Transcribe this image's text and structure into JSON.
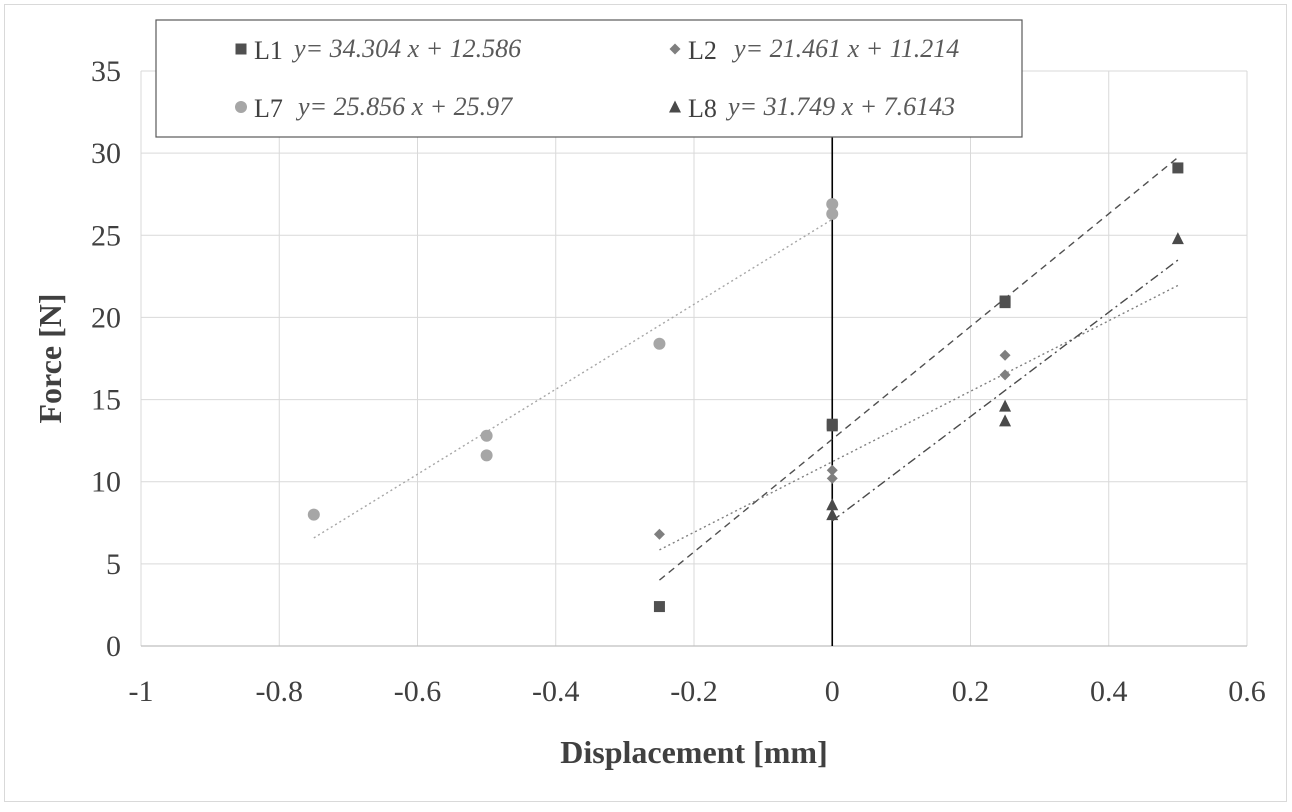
{
  "chart_data": {
    "type": "scatter",
    "xlabel": "Displacement [mm]",
    "ylabel": "Force [N]",
    "xlim": [
      -1,
      0.6
    ],
    "ylim": [
      0,
      35
    ],
    "xticks": [
      -1,
      -0.8,
      -0.6,
      -0.4,
      -0.2,
      0,
      0.2,
      0.4,
      0.6
    ],
    "xtick_labels": [
      "-1",
      "-0.8",
      "-0.6",
      "-0.4",
      "-0.2",
      "0",
      "0.2",
      "0.4",
      "0.6"
    ],
    "yticks": [
      0,
      5,
      10,
      15,
      20,
      25,
      30,
      35
    ],
    "ytick_labels": [
      "0",
      "5",
      "10",
      "15",
      "20",
      "25",
      "30",
      "35"
    ],
    "grid": true,
    "legend_position": "top",
    "series": [
      {
        "name": "L1",
        "marker": "square",
        "color": "#505050",
        "trendline": "dashed",
        "equation": "y= 34.304 x + 12.586",
        "slope": 34.304,
        "intercept": 12.586,
        "fit_range": [
          -0.25,
          0.5
        ],
        "x": [
          -0.25,
          0,
          0,
          0.25,
          0.25,
          0.5
        ],
        "y": [
          2.4,
          13.4,
          13.5,
          20.9,
          21.0,
          29.1
        ]
      },
      {
        "name": "L2",
        "marker": "diamond",
        "color": "#7f7f7f",
        "trendline": "dotted",
        "equation": "y= 21.461 x + 11.214",
        "slope": 21.461,
        "intercept": 11.214,
        "fit_range": [
          -0.25,
          0.5
        ],
        "x": [
          -0.25,
          0,
          0,
          0.25,
          0.25
        ],
        "y": [
          6.8,
          10.7,
          10.2,
          17.7,
          16.5
        ]
      },
      {
        "name": "L7",
        "marker": "circle",
        "color": "#a6a6a6",
        "trendline": "dotted",
        "equation": "y= 25.856 x + 25.97",
        "slope": 25.856,
        "intercept": 25.97,
        "fit_range": [
          -0.75,
          0
        ],
        "x": [
          -0.75,
          -0.5,
          -0.5,
          -0.25,
          0,
          0
        ],
        "y": [
          8.0,
          12.8,
          11.6,
          18.4,
          26.9,
          26.3
        ]
      },
      {
        "name": "L8",
        "marker": "triangle",
        "color": "#4a4a4a",
        "trendline": "dashdot",
        "equation": "y= 31.749 x + 7.6143",
        "slope": 31.749,
        "intercept": 7.6143,
        "fit_range": [
          0,
          0.5
        ],
        "x": [
          0,
          0,
          0.25,
          0.25,
          0.5
        ],
        "y": [
          8.6,
          8.0,
          14.6,
          13.7,
          24.8
        ]
      }
    ]
  }
}
